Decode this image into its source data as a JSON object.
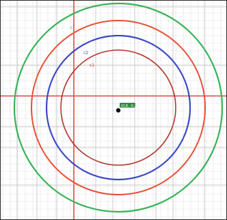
{
  "labels": {
    "circle_c": "c",
    "circle_c2": "c2",
    "circle_c1": "c1",
    "center_point": "(0.8, -0.2)"
  },
  "colors": {
    "background": "#ffffff",
    "grid_minor": "#e2e2e2",
    "grid_major": "#bdbdbd",
    "axis": "#d94a4a",
    "circle_c": "#37b356",
    "circle_c2": "#ea4e34",
    "circle_c1": "#3b49c6",
    "circle_inner": "#b6332a",
    "point": "#111111",
    "point_label_bg": "#2d8a3e",
    "point_label_text": "#ffffff"
  }
}
